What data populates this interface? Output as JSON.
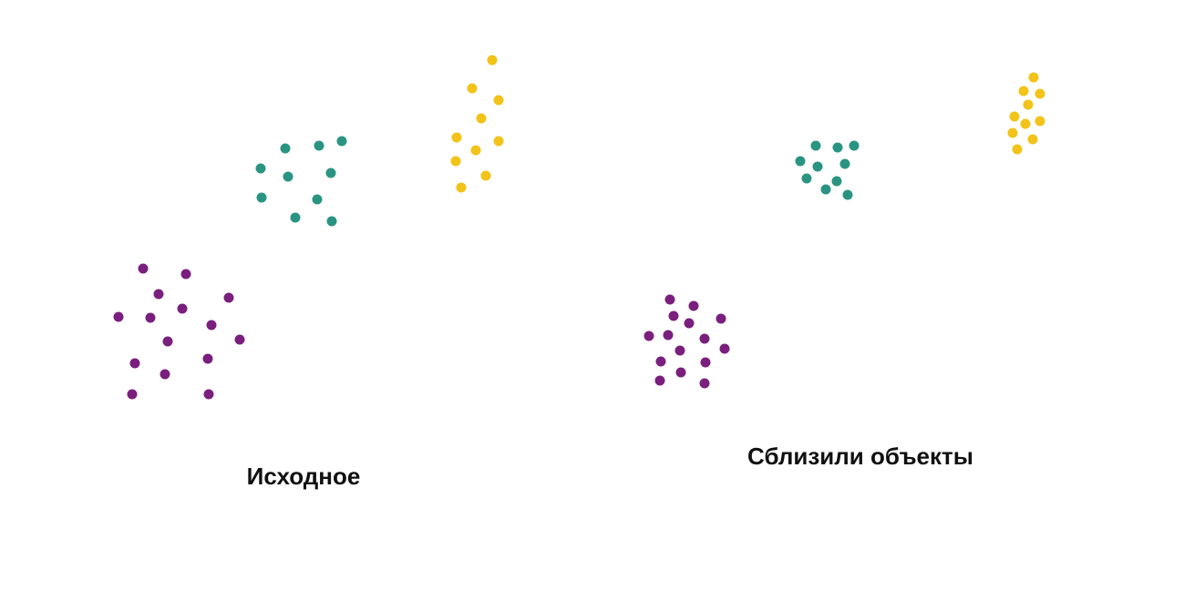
{
  "colors": {
    "background": "#ffffff",
    "purple": "#7a1f7d",
    "teal": "#2a9482",
    "yellow": "#f2c318",
    "text": "#111111"
  },
  "panels": [
    {
      "id": "original",
      "caption": "Исходное"
    },
    {
      "id": "moved",
      "caption": "Сблизили объекты"
    }
  ]
}
